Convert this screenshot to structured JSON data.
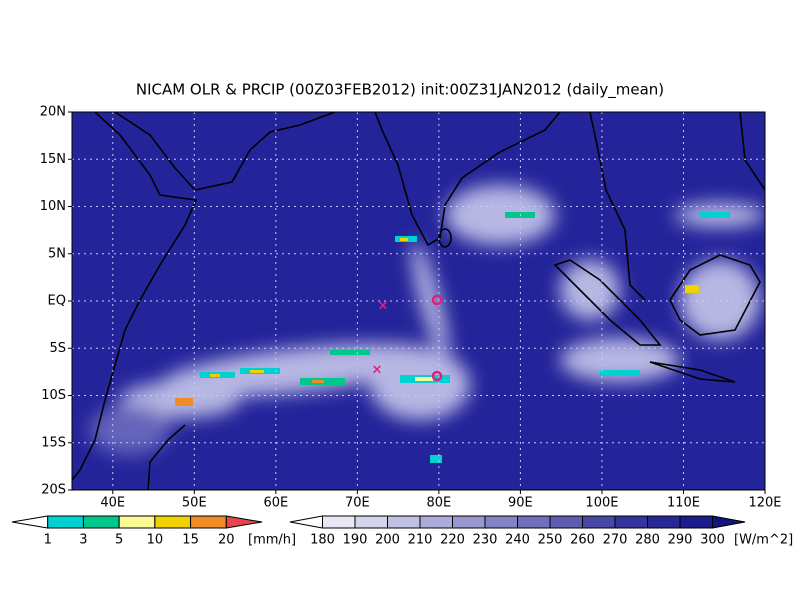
{
  "title": "NICAM OLR & PRCIP (00Z03FEB2012) init:00Z31JAN2012 (daily_mean)",
  "lat_labels": [
    "20N",
    "15N",
    "10N",
    "5N",
    "EQ",
    "5S",
    "10S",
    "15S",
    "20S"
  ],
  "lon_labels": [
    "40E",
    "50E",
    "60E",
    "70E",
    "80E",
    "90E",
    "100E",
    "110E",
    "120E"
  ],
  "precip_colorbar": {
    "labels": [
      1,
      3,
      5,
      10,
      15,
      20
    ],
    "unit": "[mm/h]",
    "colors": [
      "#ffffff",
      "#00d2d2",
      "#00c88c",
      "#fafa96",
      "#f0d200",
      "#f08c28",
      "#e6464b"
    ]
  },
  "olr_colorbar": {
    "labels": [
      180,
      190,
      200,
      210,
      220,
      230,
      240,
      250,
      260,
      270,
      280,
      290,
      300
    ],
    "unit": "[W/m^2]",
    "colors": [
      "#ffffff",
      "#e8e8f4",
      "#d4d4ec",
      "#c0c0e2",
      "#acacd8",
      "#9898ce",
      "#8484c4",
      "#7070ba",
      "#5c5cb0",
      "#4848a6",
      "#34349c",
      "#282894",
      "#1c1c8a",
      "#141480"
    ]
  }
}
